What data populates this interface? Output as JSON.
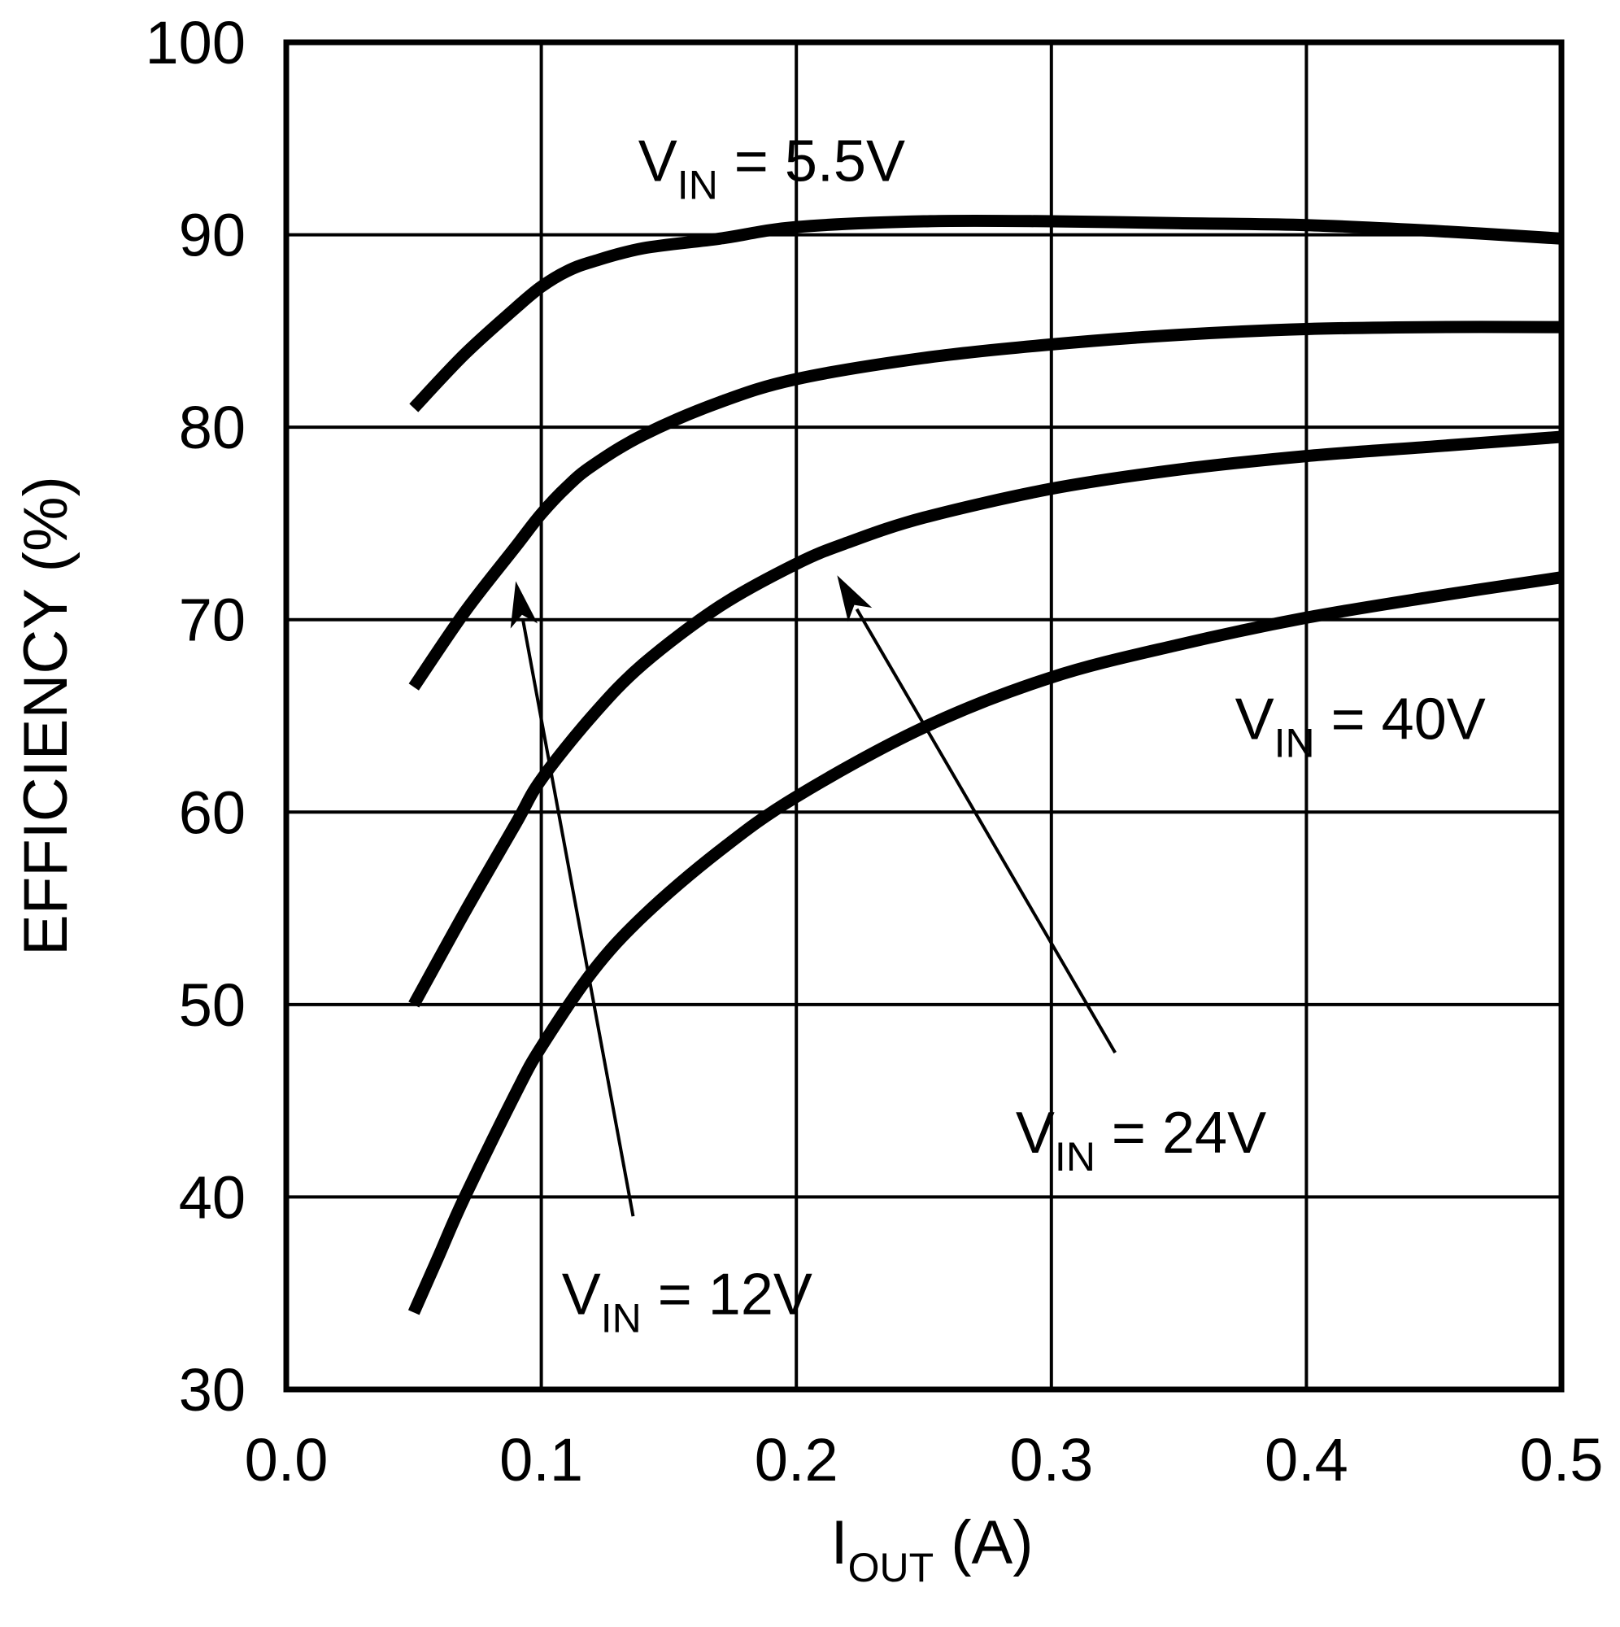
{
  "chart_data": {
    "type": "line",
    "xlabel": {
      "main": "I",
      "sub": "OUT",
      "rest": " (A)"
    },
    "ylabel": "EFFICIENCY (%)",
    "xlim": [
      0.0,
      0.5
    ],
    "ylim": [
      30,
      100
    ],
    "x_ticks": [
      "0.0",
      "0.1",
      "0.2",
      "0.3",
      "0.4",
      "0.5"
    ],
    "y_ticks": [
      "30",
      "40",
      "50",
      "60",
      "70",
      "80",
      "90",
      "100"
    ],
    "grid": true,
    "series": [
      {
        "id": "v55",
        "x": [
          0.05,
          0.07,
          0.09,
          0.1,
          0.11,
          0.12,
          0.14,
          0.17,
          0.2,
          0.25,
          0.3,
          0.35,
          0.4,
          0.45,
          0.5
        ],
        "y": [
          81.0,
          83.8,
          86.2,
          87.3,
          88.1,
          88.6,
          89.3,
          89.8,
          90.4,
          90.7,
          90.7,
          90.6,
          90.5,
          90.2,
          89.8
        ]
      },
      {
        "id": "v12",
        "x": [
          0.05,
          0.07,
          0.09,
          0.1,
          0.11,
          0.12,
          0.14,
          0.17,
          0.2,
          0.25,
          0.3,
          0.35,
          0.4,
          0.45,
          0.5
        ],
        "y": [
          66.5,
          70.4,
          73.8,
          75.5,
          76.9,
          78.0,
          79.6,
          81.3,
          82.5,
          83.6,
          84.3,
          84.8,
          85.1,
          85.2,
          85.2
        ]
      },
      {
        "id": "v24",
        "x": [
          0.05,
          0.07,
          0.09,
          0.1,
          0.12,
          0.14,
          0.17,
          0.2,
          0.22,
          0.25,
          0.3,
          0.35,
          0.4,
          0.45,
          0.5
        ],
        "y": [
          50.0,
          54.8,
          59.4,
          61.7,
          65.0,
          67.7,
          70.7,
          72.9,
          74.0,
          75.3,
          76.8,
          77.8,
          78.5,
          79.0,
          79.5
        ]
      },
      {
        "id": "v40",
        "x": [
          0.05,
          0.06,
          0.07,
          0.09,
          0.1,
          0.12,
          0.14,
          0.17,
          0.2,
          0.25,
          0.3,
          0.35,
          0.4,
          0.45,
          0.5
        ],
        "y": [
          34.0,
          37.0,
          40.0,
          45.4,
          47.8,
          51.7,
          54.6,
          58.0,
          60.8,
          64.4,
          67.0,
          68.7,
          70.1,
          71.2,
          72.2
        ]
      }
    ],
    "annotations": [
      {
        "id": "v55",
        "main": "V",
        "sub": "IN",
        "rest": " = 5.5V",
        "x": 0.138,
        "y": 92.8
      },
      {
        "id": "v40",
        "main": "V",
        "sub": "IN",
        "rest": " = 40V",
        "x": 0.372,
        "y": 63.8
      },
      {
        "id": "v24",
        "main": "V",
        "sub": "IN",
        "rest": " = 24V",
        "x": 0.286,
        "y": 42.3
      },
      {
        "id": "v12",
        "main": "V",
        "sub": "IN",
        "rest": " = 12V",
        "x": 0.108,
        "y": 33.9
      }
    ],
    "leaders": [
      {
        "id": "v12",
        "from": [
          0.136,
          39.0
        ],
        "to": [
          0.09,
          72.0
        ]
      },
      {
        "id": "v24",
        "from": [
          0.325,
          47.5
        ],
        "to": [
          0.216,
          72.3
        ]
      }
    ]
  }
}
